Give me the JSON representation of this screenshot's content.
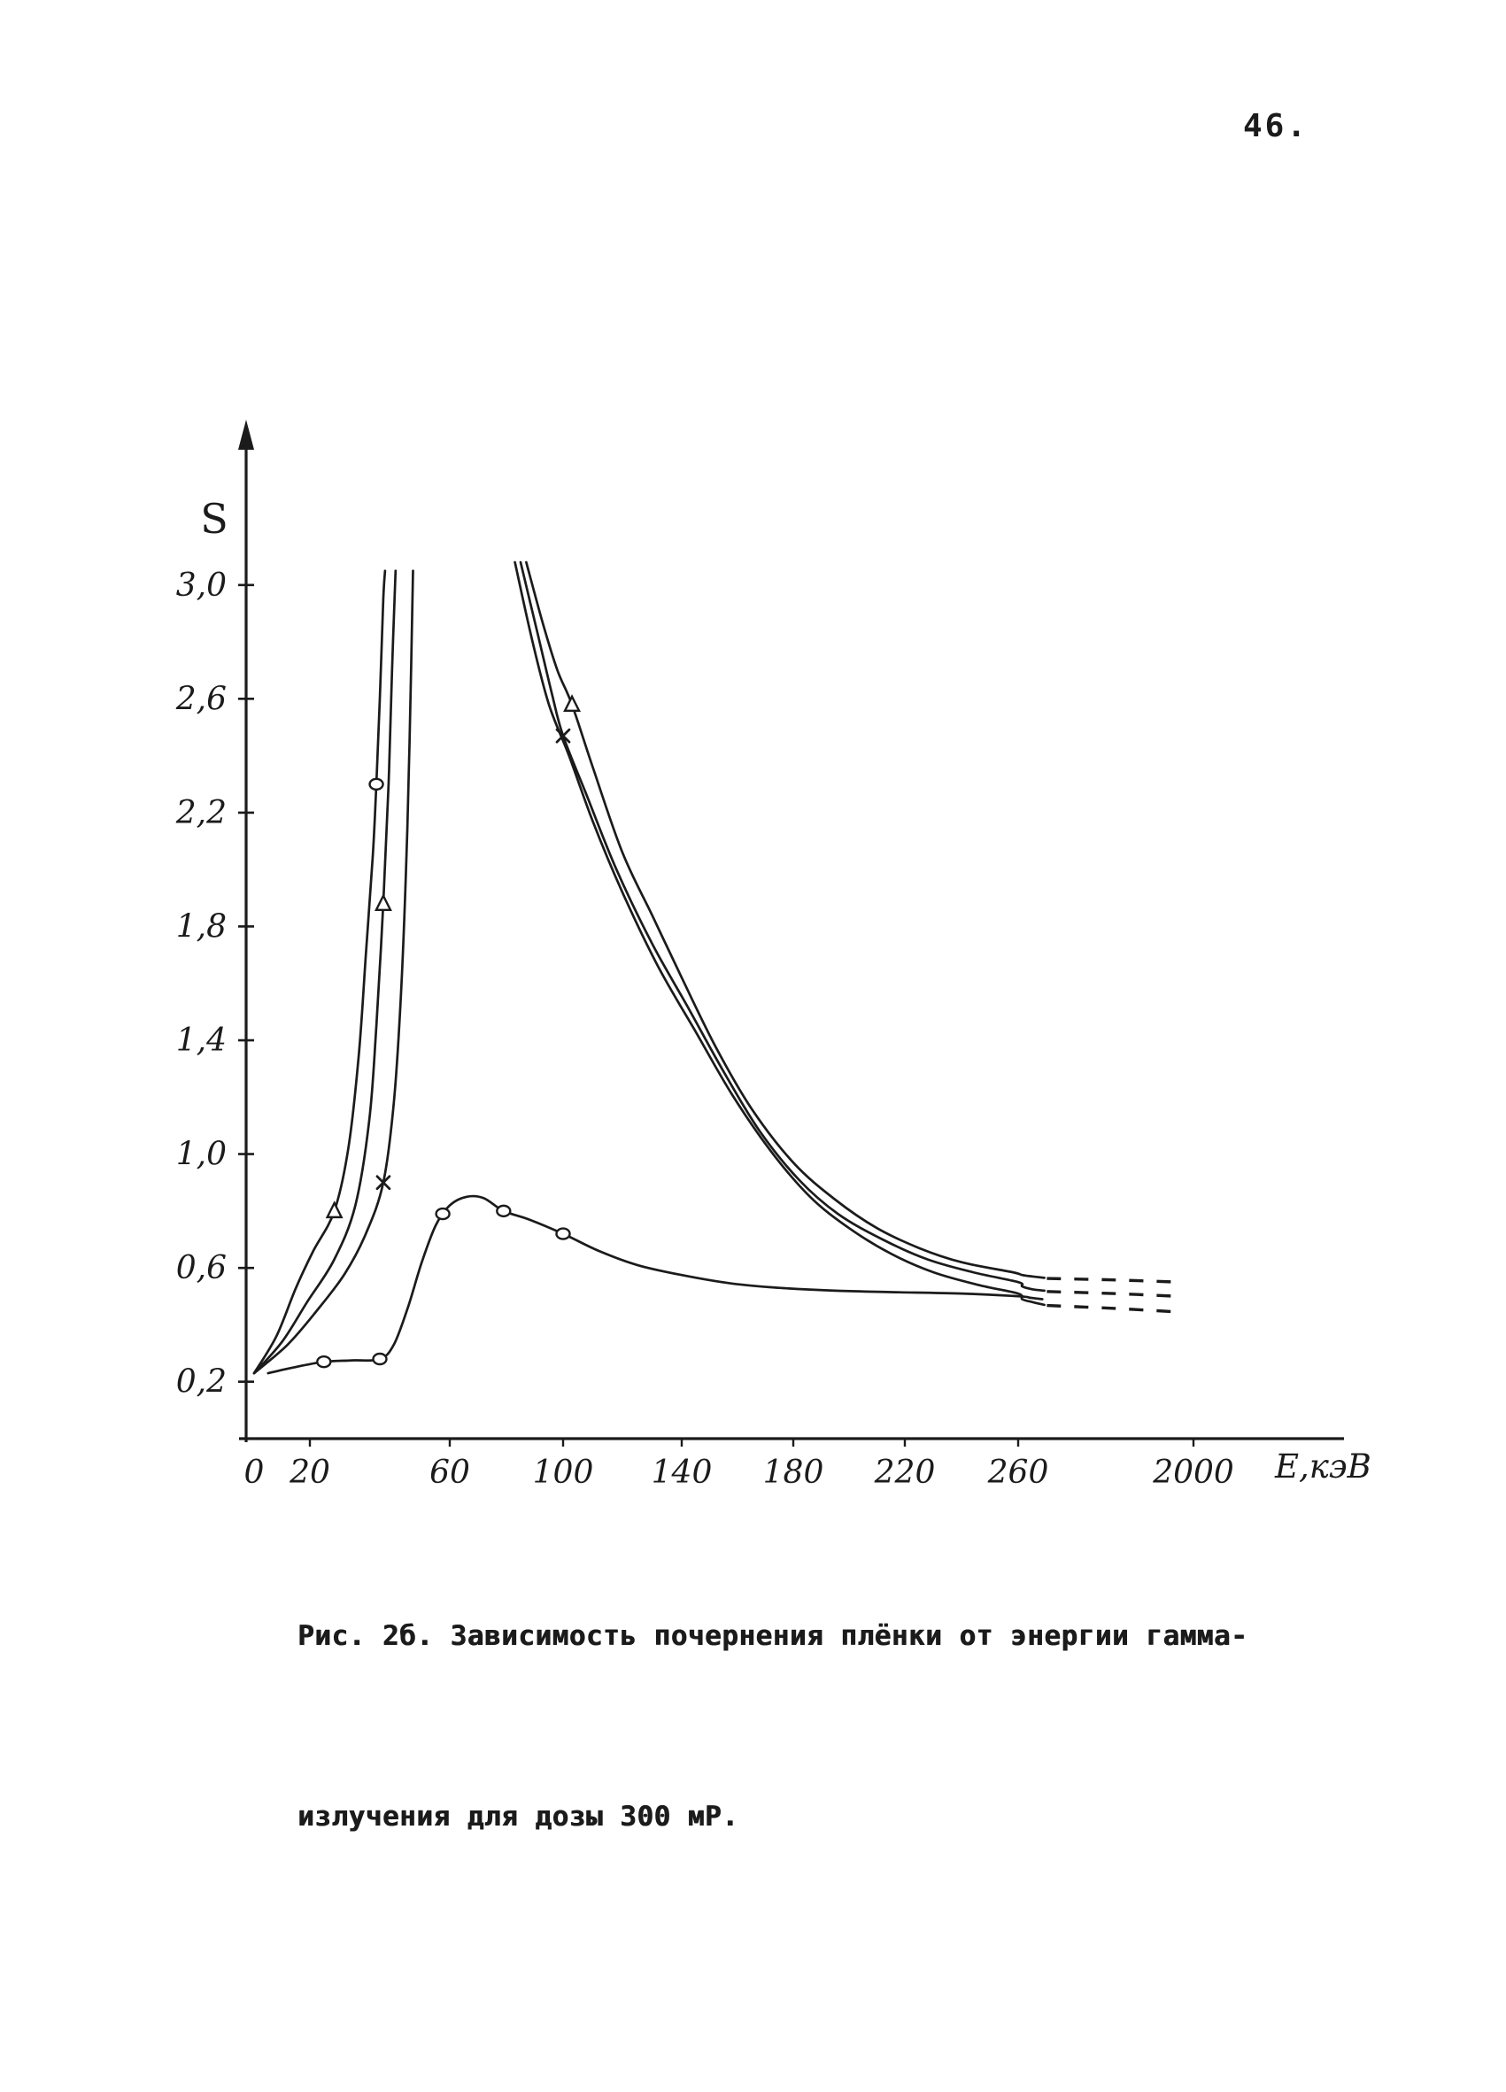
{
  "page": {
    "number": "46."
  },
  "caption": {
    "line1": "Рис. 2б. Зависимость почернения плёнки от энергии гамма-",
    "line2": "излучения для дозы 300 мР."
  },
  "ink_color": "#1b1b1b",
  "paper_color": "#ffffff",
  "chart_data": {
    "type": "line",
    "title": "Зависимость почернения плёнки от энергии гамма-излучения для дозы 300 мР",
    "xlabel": "Е,кэВ",
    "ylabel": "S",
    "x_ticks": [
      0,
      20,
      60,
      100,
      140,
      180,
      220,
      260,
      2000
    ],
    "x_tick_labels": [
      "0",
      "20",
      "60",
      "100",
      "140",
      "180",
      "220",
      "260",
      "2000"
    ],
    "y_ticks": [
      0.2,
      0.6,
      1.0,
      1.4,
      1.8,
      2.2,
      2.6,
      3.0
    ],
    "y_tick_labels": [
      "0,2",
      "0,6",
      "1,0",
      "1,4",
      "1,8",
      "2,2",
      "2,6",
      "3,0"
    ],
    "ylim": [
      0,
      3.2
    ],
    "axis_note": "x-axis compressed beyond 260 keV (break before 2000); right-hand curve tails drawn dashed",
    "grid": false,
    "legend": "none",
    "series": [
      {
        "name": "steep-film-1",
        "style": "solid",
        "points": [
          [
            0,
            0.23
          ],
          [
            8,
            0.36
          ],
          [
            15,
            0.53
          ],
          [
            21,
            0.66
          ],
          [
            27,
            0.8
          ],
          [
            31,
            1.02
          ],
          [
            34,
            1.35
          ],
          [
            36,
            1.7
          ],
          [
            38,
            2.05
          ],
          [
            39,
            2.3
          ],
          [
            40,
            2.6
          ],
          [
            41,
            2.95
          ],
          [
            41.5,
            3.05
          ]
        ],
        "markers": [
          {
            "type": "triangle",
            "x": 27,
            "y": 0.8
          },
          {
            "type": "circle",
            "x": 39,
            "y": 2.3
          }
        ]
      },
      {
        "name": "steep-film-2",
        "style": "solid",
        "points": [
          [
            0,
            0.23
          ],
          [
            10,
            0.34
          ],
          [
            19,
            0.48
          ],
          [
            27,
            0.63
          ],
          [
            33,
            0.82
          ],
          [
            37,
            1.12
          ],
          [
            39,
            1.45
          ],
          [
            41,
            1.88
          ],
          [
            42.5,
            2.3
          ],
          [
            43.5,
            2.7
          ],
          [
            44.5,
            3.05
          ]
        ],
        "markers": [
          {
            "type": "triangle",
            "x": 41,
            "y": 1.88
          }
        ]
      },
      {
        "name": "steep-film-3",
        "style": "solid",
        "points": [
          [
            0,
            0.23
          ],
          [
            12,
            0.33
          ],
          [
            22,
            0.45
          ],
          [
            30,
            0.58
          ],
          [
            36,
            0.72
          ],
          [
            41,
            0.9
          ],
          [
            44,
            1.18
          ],
          [
            46,
            1.55
          ],
          [
            47.5,
            2.0
          ],
          [
            48.5,
            2.45
          ],
          [
            49.5,
            3.05
          ]
        ],
        "markers": [
          {
            "type": "cross",
            "x": 41,
            "y": 0.9
          }
        ]
      },
      {
        "name": "descending-film-1",
        "style": "solid-then-dashed",
        "points": [
          [
            87,
            3.08
          ],
          [
            93,
            2.86
          ],
          [
            98,
            2.7
          ],
          [
            103,
            2.58
          ],
          [
            110,
            2.36
          ],
          [
            120,
            2.06
          ],
          [
            130,
            1.84
          ],
          [
            140,
            1.62
          ],
          [
            152,
            1.38
          ],
          [
            165,
            1.16
          ],
          [
            180,
            0.97
          ],
          [
            195,
            0.84
          ],
          [
            210,
            0.74
          ],
          [
            225,
            0.67
          ],
          [
            240,
            0.62
          ],
          [
            258,
            0.585
          ],
          [
            300,
            0.575
          ],
          [
            400,
            0.57
          ],
          [
            520,
            0.565
          ]
        ],
        "dash_tail": [
          [
            545,
            0.563
          ],
          [
            1200,
            0.558
          ],
          [
            1860,
            0.55
          ]
        ],
        "markers": [
          {
            "type": "triangle",
            "x": 103,
            "y": 2.58
          }
        ]
      },
      {
        "name": "descending-film-2",
        "style": "solid-then-dashed",
        "points": [
          [
            85,
            3.08
          ],
          [
            91,
            2.83
          ],
          [
            96,
            2.62
          ],
          [
            100,
            2.47
          ],
          [
            108,
            2.26
          ],
          [
            118,
            2.0
          ],
          [
            130,
            1.74
          ],
          [
            142,
            1.52
          ],
          [
            155,
            1.29
          ],
          [
            168,
            1.08
          ],
          [
            182,
            0.91
          ],
          [
            196,
            0.79
          ],
          [
            212,
            0.7
          ],
          [
            228,
            0.63
          ],
          [
            244,
            0.585
          ],
          [
            260,
            0.55
          ],
          [
            300,
            0.535
          ],
          [
            400,
            0.525
          ],
          [
            520,
            0.52
          ]
        ],
        "dash_tail": [
          [
            545,
            0.517
          ],
          [
            1200,
            0.51
          ],
          [
            1860,
            0.5
          ]
        ],
        "markers": [
          {
            "type": "cross",
            "x": 100,
            "y": 2.47
          }
        ]
      },
      {
        "name": "descending-film-3",
        "style": "solid-then-dashed",
        "points": [
          [
            83,
            3.08
          ],
          [
            89,
            2.81
          ],
          [
            95,
            2.58
          ],
          [
            102,
            2.4
          ],
          [
            110,
            2.17
          ],
          [
            120,
            1.92
          ],
          [
            132,
            1.66
          ],
          [
            145,
            1.43
          ],
          [
            158,
            1.21
          ],
          [
            172,
            1.01
          ],
          [
            186,
            0.85
          ],
          [
            200,
            0.74
          ],
          [
            215,
            0.65
          ],
          [
            230,
            0.585
          ],
          [
            246,
            0.54
          ],
          [
            260,
            0.51
          ],
          [
            300,
            0.49
          ],
          [
            400,
            0.48
          ],
          [
            520,
            0.47
          ]
        ],
        "dash_tail": [
          [
            545,
            0.468
          ],
          [
            1200,
            0.458
          ],
          [
            1860,
            0.445
          ]
        ],
        "markers": []
      },
      {
        "name": "low-sensitivity-film",
        "style": "solid",
        "points": [
          [
            5,
            0.23
          ],
          [
            14,
            0.25
          ],
          [
            24,
            0.27
          ],
          [
            32,
            0.275
          ],
          [
            40,
            0.28
          ],
          [
            44,
            0.33
          ],
          [
            48,
            0.46
          ],
          [
            52,
            0.62
          ],
          [
            56,
            0.75
          ],
          [
            60,
            0.82
          ],
          [
            66,
            0.85
          ],
          [
            72,
            0.845
          ],
          [
            79,
            0.8
          ],
          [
            88,
            0.77
          ],
          [
            100,
            0.72
          ],
          [
            112,
            0.66
          ],
          [
            125,
            0.61
          ],
          [
            140,
            0.575
          ],
          [
            158,
            0.545
          ],
          [
            175,
            0.53
          ],
          [
            195,
            0.52
          ],
          [
            215,
            0.515
          ],
          [
            240,
            0.51
          ],
          [
            280,
            0.5
          ],
          [
            380,
            0.495
          ],
          [
            500,
            0.49
          ]
        ],
        "markers": [
          {
            "type": "circle",
            "x": 24,
            "y": 0.27
          },
          {
            "type": "circle",
            "x": 40,
            "y": 0.28
          },
          {
            "type": "circle",
            "x": 58,
            "y": 0.79
          },
          {
            "type": "circle",
            "x": 79,
            "y": 0.8
          },
          {
            "type": "circle",
            "x": 100,
            "y": 0.72
          }
        ]
      }
    ]
  }
}
